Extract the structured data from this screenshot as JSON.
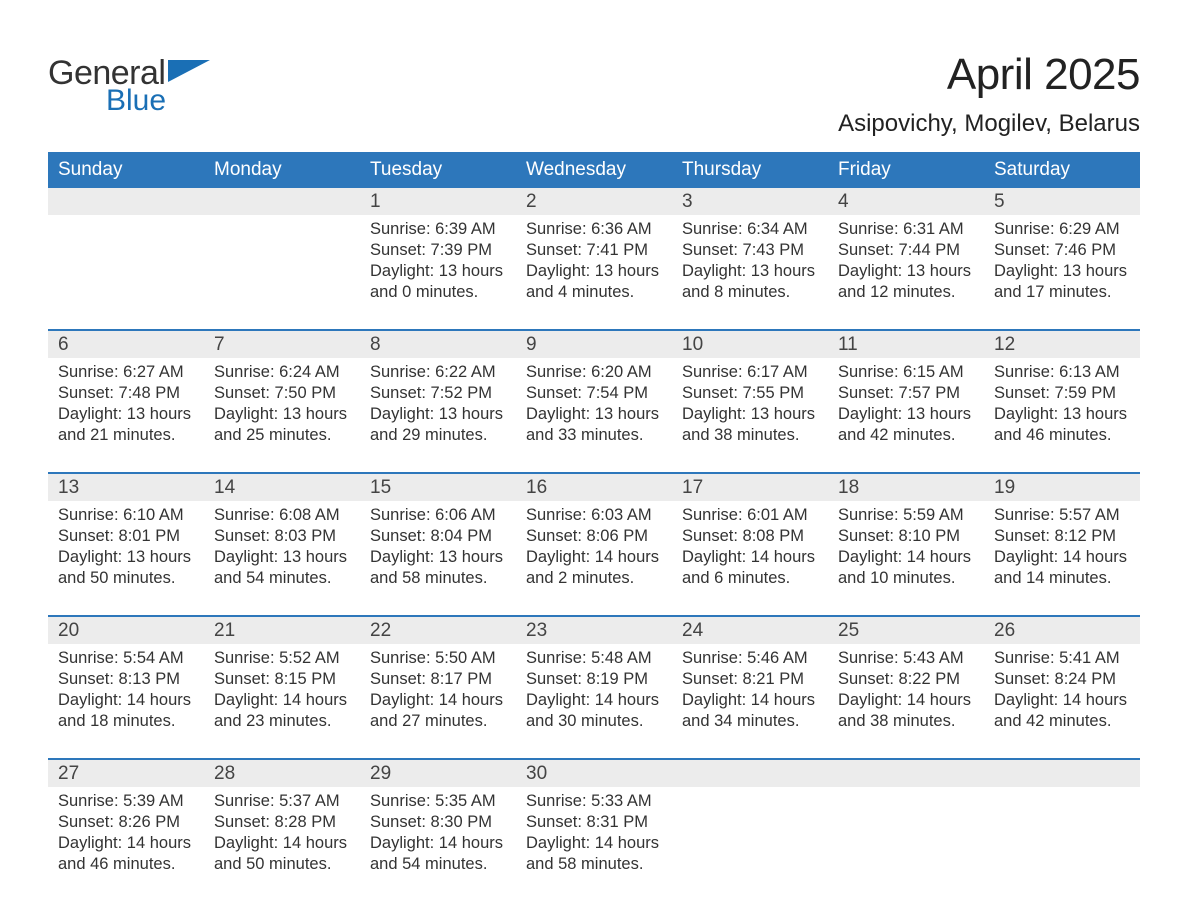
{
  "brand": {
    "text_general": "General",
    "text_blue": "Blue",
    "icon_color": "#1a6fb5",
    "text_color_general": "#333333",
    "text_color_blue": "#1a6fb5"
  },
  "title": "April 2025",
  "location": "Asipovichy, Mogilev, Belarus",
  "colors": {
    "header_bg": "#2d77bb",
    "header_text": "#ffffff",
    "daynum_bg": "#ececec",
    "daynum_text": "#444444",
    "body_text": "#333333",
    "separator": "#2d77bb",
    "page_bg": "#ffffff"
  },
  "typography": {
    "title_fontsize": 44,
    "location_fontsize": 24,
    "header_fontsize": 19,
    "daynum_fontsize": 19,
    "body_fontsize": 16.5
  },
  "layout": {
    "columns": 7,
    "weeks": 5
  },
  "day_headers": [
    "Sunday",
    "Monday",
    "Tuesday",
    "Wednesday",
    "Thursday",
    "Friday",
    "Saturday"
  ],
  "weeks": [
    {
      "nums": [
        "",
        "",
        "1",
        "2",
        "3",
        "4",
        "5"
      ],
      "cells": [
        {
          "sunrise": "",
          "sunset": "",
          "daylight": ""
        },
        {
          "sunrise": "",
          "sunset": "",
          "daylight": ""
        },
        {
          "sunrise": "Sunrise: 6:39 AM",
          "sunset": "Sunset: 7:39 PM",
          "daylight": "Daylight: 13 hours and 0 minutes."
        },
        {
          "sunrise": "Sunrise: 6:36 AM",
          "sunset": "Sunset: 7:41 PM",
          "daylight": "Daylight: 13 hours and 4 minutes."
        },
        {
          "sunrise": "Sunrise: 6:34 AM",
          "sunset": "Sunset: 7:43 PM",
          "daylight": "Daylight: 13 hours and 8 minutes."
        },
        {
          "sunrise": "Sunrise: 6:31 AM",
          "sunset": "Sunset: 7:44 PM",
          "daylight": "Daylight: 13 hours and 12 minutes."
        },
        {
          "sunrise": "Sunrise: 6:29 AM",
          "sunset": "Sunset: 7:46 PM",
          "daylight": "Daylight: 13 hours and 17 minutes."
        }
      ]
    },
    {
      "nums": [
        "6",
        "7",
        "8",
        "9",
        "10",
        "11",
        "12"
      ],
      "cells": [
        {
          "sunrise": "Sunrise: 6:27 AM",
          "sunset": "Sunset: 7:48 PM",
          "daylight": "Daylight: 13 hours and 21 minutes."
        },
        {
          "sunrise": "Sunrise: 6:24 AM",
          "sunset": "Sunset: 7:50 PM",
          "daylight": "Daylight: 13 hours and 25 minutes."
        },
        {
          "sunrise": "Sunrise: 6:22 AM",
          "sunset": "Sunset: 7:52 PM",
          "daylight": "Daylight: 13 hours and 29 minutes."
        },
        {
          "sunrise": "Sunrise: 6:20 AM",
          "sunset": "Sunset: 7:54 PM",
          "daylight": "Daylight: 13 hours and 33 minutes."
        },
        {
          "sunrise": "Sunrise: 6:17 AM",
          "sunset": "Sunset: 7:55 PM",
          "daylight": "Daylight: 13 hours and 38 minutes."
        },
        {
          "sunrise": "Sunrise: 6:15 AM",
          "sunset": "Sunset: 7:57 PM",
          "daylight": "Daylight: 13 hours and 42 minutes."
        },
        {
          "sunrise": "Sunrise: 6:13 AM",
          "sunset": "Sunset: 7:59 PM",
          "daylight": "Daylight: 13 hours and 46 minutes."
        }
      ]
    },
    {
      "nums": [
        "13",
        "14",
        "15",
        "16",
        "17",
        "18",
        "19"
      ],
      "cells": [
        {
          "sunrise": "Sunrise: 6:10 AM",
          "sunset": "Sunset: 8:01 PM",
          "daylight": "Daylight: 13 hours and 50 minutes."
        },
        {
          "sunrise": "Sunrise: 6:08 AM",
          "sunset": "Sunset: 8:03 PM",
          "daylight": "Daylight: 13 hours and 54 minutes."
        },
        {
          "sunrise": "Sunrise: 6:06 AM",
          "sunset": "Sunset: 8:04 PM",
          "daylight": "Daylight: 13 hours and 58 minutes."
        },
        {
          "sunrise": "Sunrise: 6:03 AM",
          "sunset": "Sunset: 8:06 PM",
          "daylight": "Daylight: 14 hours and 2 minutes."
        },
        {
          "sunrise": "Sunrise: 6:01 AM",
          "sunset": "Sunset: 8:08 PM",
          "daylight": "Daylight: 14 hours and 6 minutes."
        },
        {
          "sunrise": "Sunrise: 5:59 AM",
          "sunset": "Sunset: 8:10 PM",
          "daylight": "Daylight: 14 hours and 10 minutes."
        },
        {
          "sunrise": "Sunrise: 5:57 AM",
          "sunset": "Sunset: 8:12 PM",
          "daylight": "Daylight: 14 hours and 14 minutes."
        }
      ]
    },
    {
      "nums": [
        "20",
        "21",
        "22",
        "23",
        "24",
        "25",
        "26"
      ],
      "cells": [
        {
          "sunrise": "Sunrise: 5:54 AM",
          "sunset": "Sunset: 8:13 PM",
          "daylight": "Daylight: 14 hours and 18 minutes."
        },
        {
          "sunrise": "Sunrise: 5:52 AM",
          "sunset": "Sunset: 8:15 PM",
          "daylight": "Daylight: 14 hours and 23 minutes."
        },
        {
          "sunrise": "Sunrise: 5:50 AM",
          "sunset": "Sunset: 8:17 PM",
          "daylight": "Daylight: 14 hours and 27 minutes."
        },
        {
          "sunrise": "Sunrise: 5:48 AM",
          "sunset": "Sunset: 8:19 PM",
          "daylight": "Daylight: 14 hours and 30 minutes."
        },
        {
          "sunrise": "Sunrise: 5:46 AM",
          "sunset": "Sunset: 8:21 PM",
          "daylight": "Daylight: 14 hours and 34 minutes."
        },
        {
          "sunrise": "Sunrise: 5:43 AM",
          "sunset": "Sunset: 8:22 PM",
          "daylight": "Daylight: 14 hours and 38 minutes."
        },
        {
          "sunrise": "Sunrise: 5:41 AM",
          "sunset": "Sunset: 8:24 PM",
          "daylight": "Daylight: 14 hours and 42 minutes."
        }
      ]
    },
    {
      "nums": [
        "27",
        "28",
        "29",
        "30",
        "",
        "",
        ""
      ],
      "cells": [
        {
          "sunrise": "Sunrise: 5:39 AM",
          "sunset": "Sunset: 8:26 PM",
          "daylight": "Daylight: 14 hours and 46 minutes."
        },
        {
          "sunrise": "Sunrise: 5:37 AM",
          "sunset": "Sunset: 8:28 PM",
          "daylight": "Daylight: 14 hours and 50 minutes."
        },
        {
          "sunrise": "Sunrise: 5:35 AM",
          "sunset": "Sunset: 8:30 PM",
          "daylight": "Daylight: 14 hours and 54 minutes."
        },
        {
          "sunrise": "Sunrise: 5:33 AM",
          "sunset": "Sunset: 8:31 PM",
          "daylight": "Daylight: 14 hours and 58 minutes."
        },
        {
          "sunrise": "",
          "sunset": "",
          "daylight": ""
        },
        {
          "sunrise": "",
          "sunset": "",
          "daylight": ""
        },
        {
          "sunrise": "",
          "sunset": "",
          "daylight": ""
        }
      ]
    }
  ]
}
